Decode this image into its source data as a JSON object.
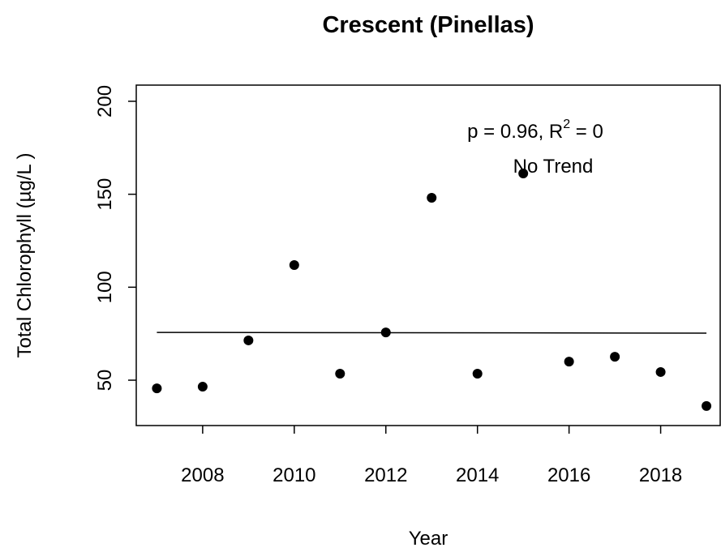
{
  "chart_data": {
    "type": "scatter",
    "title": "Crescent (Pinellas)",
    "x_label": "Year",
    "y_label": "Total Chlorophyll (µg/L )",
    "x": [
      2007,
      2008,
      2009,
      2010,
      2011,
      2012,
      2013,
      2014,
      2015,
      2016,
      2017,
      2018,
      2019
    ],
    "values": [
      45.6,
      46.5,
      71.4,
      111.9,
      53.5,
      75.7,
      148.1,
      53.5,
      161.2,
      60,
      62.6,
      54.4,
      36.1
    ],
    "color": "#000000",
    "trend": {
      "x": [
        2007,
        2019
      ],
      "values": [
        75.7,
        75.3
      ]
    },
    "annotation": {
      "text": "p = 0.96, R",
      "superscript": "2",
      "suffix": " = 0",
      "result": "No Trend"
    },
    "xlim": [
      2006.55,
      2019.3
    ],
    "ylim": [
      25.6,
      208.7
    ],
    "xticks": [
      2008,
      2010,
      2012,
      2014,
      2016,
      2018
    ],
    "yticks": [
      50,
      100,
      150,
      200
    ]
  }
}
